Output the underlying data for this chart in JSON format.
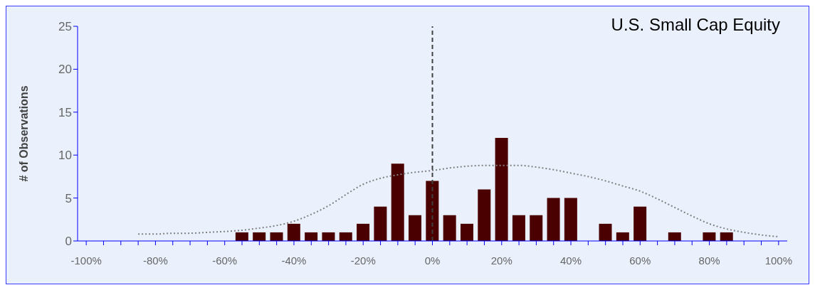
{
  "chart_data": {
    "type": "bar",
    "title": "U.S. Small Cap Equity",
    "ylabel": "# of Observations",
    "categories": [
      "-100%",
      null,
      null,
      null,
      "-80%",
      null,
      null,
      null,
      "-60%",
      null,
      null,
      null,
      "-40%",
      null,
      null,
      null,
      "-20%",
      null,
      null,
      null,
      "0%",
      null,
      null,
      null,
      "20%",
      null,
      null,
      null,
      "40%",
      null,
      null,
      null,
      "60%",
      null,
      null,
      null,
      "80%",
      null,
      null,
      null,
      "100%"
    ],
    "series": [
      {
        "color": "#4a0000",
        "values": [
          0,
          0,
          0,
          0,
          0,
          0,
          0,
          0,
          0,
          1,
          1,
          1,
          2,
          1,
          1,
          1,
          2,
          4,
          9,
          3,
          7,
          3,
          2,
          6,
          12,
          3,
          3,
          5,
          5,
          0,
          2,
          1,
          4,
          0,
          1,
          0,
          1,
          1,
          0,
          0,
          0
        ]
      },
      {
        "type": "line",
        "color": "#808080",
        "line_style": "dotted",
        "marker": "none",
        "values": [
          null,
          null,
          null,
          0.8,
          0.8,
          0.9,
          0.9,
          1.0,
          1.1,
          1.25,
          1.5,
          1.8,
          2.3,
          3.1,
          4.1,
          5.4,
          6.6,
          7.3,
          7.7,
          8.0,
          8.2,
          8.5,
          8.7,
          8.8,
          8.8,
          8.8,
          8.6,
          8.3,
          7.9,
          7.5,
          7.0,
          6.4,
          5.8,
          4.9,
          3.9,
          2.9,
          2.0,
          1.4,
          1.0,
          0.7,
          0.5
        ]
      }
    ],
    "ylim": [
      0,
      25
    ],
    "yticks": [
      0,
      5,
      10,
      15,
      20,
      25
    ],
    "grid": false,
    "legend": false,
    "ref_lines": [
      {
        "axis": "x",
        "value": "0%",
        "color": "#404040",
        "line_style": "dashed"
      }
    ]
  }
}
